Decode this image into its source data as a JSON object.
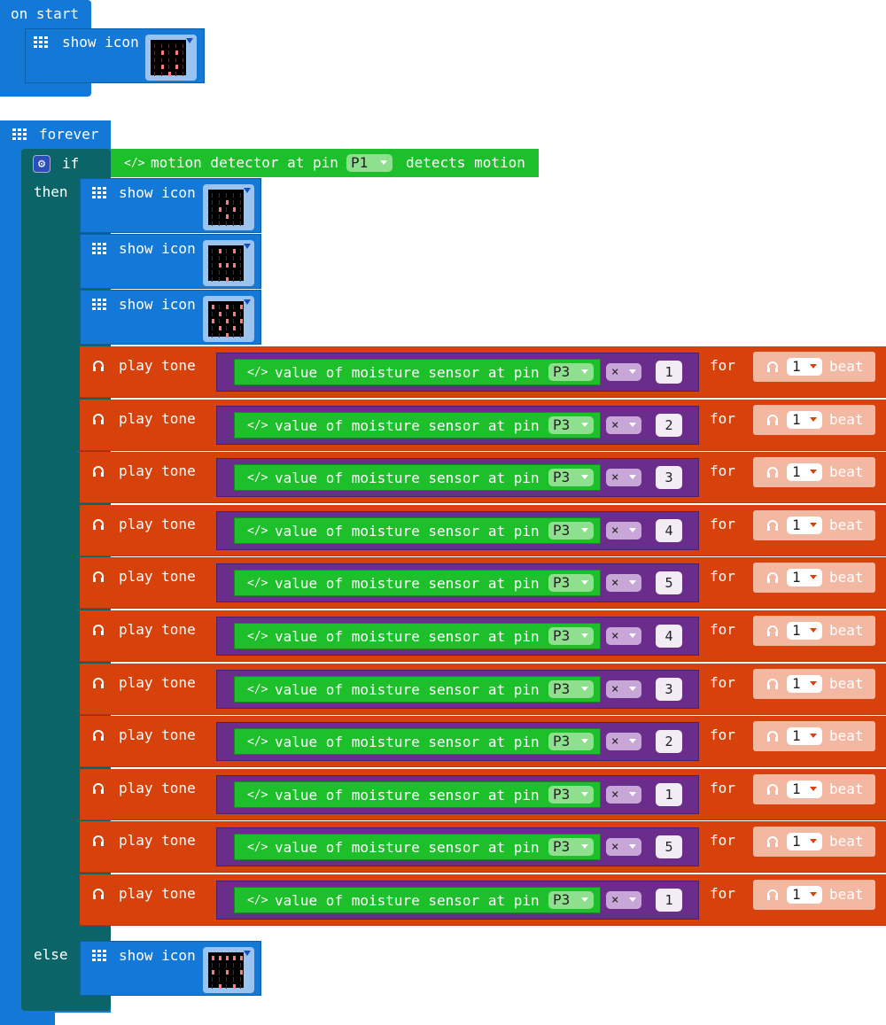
{
  "colors": {
    "basic": "#1478d6",
    "logic": "#0b6467",
    "music": "#d7410b",
    "math": "#6b2d8c",
    "sensor": "#1dbf2a"
  },
  "on_start": {
    "hat_label": "on start",
    "show_icon_label": "show icon"
  },
  "forever": {
    "hat_label": "forever",
    "if_label": "if",
    "then_label": "then",
    "else_label": "else",
    "condition": {
      "prefix": "motion detector at pin",
      "pin": "P1",
      "suffix": "detects motion"
    },
    "then_icons": [
      "show icon",
      "show icon",
      "show icon"
    ],
    "else_icon_label": "show icon"
  },
  "tone_rows": {
    "play_label": "play tone",
    "sensor_prefix": "value of moisture sensor at pin",
    "pin": "P3",
    "operator": "×",
    "for_label": "for",
    "beat_value": "1",
    "beat_label": "beat",
    "multipliers": [
      "1",
      "2",
      "3",
      "4",
      "5",
      "4",
      "3",
      "2",
      "1",
      "5",
      "1"
    ]
  }
}
